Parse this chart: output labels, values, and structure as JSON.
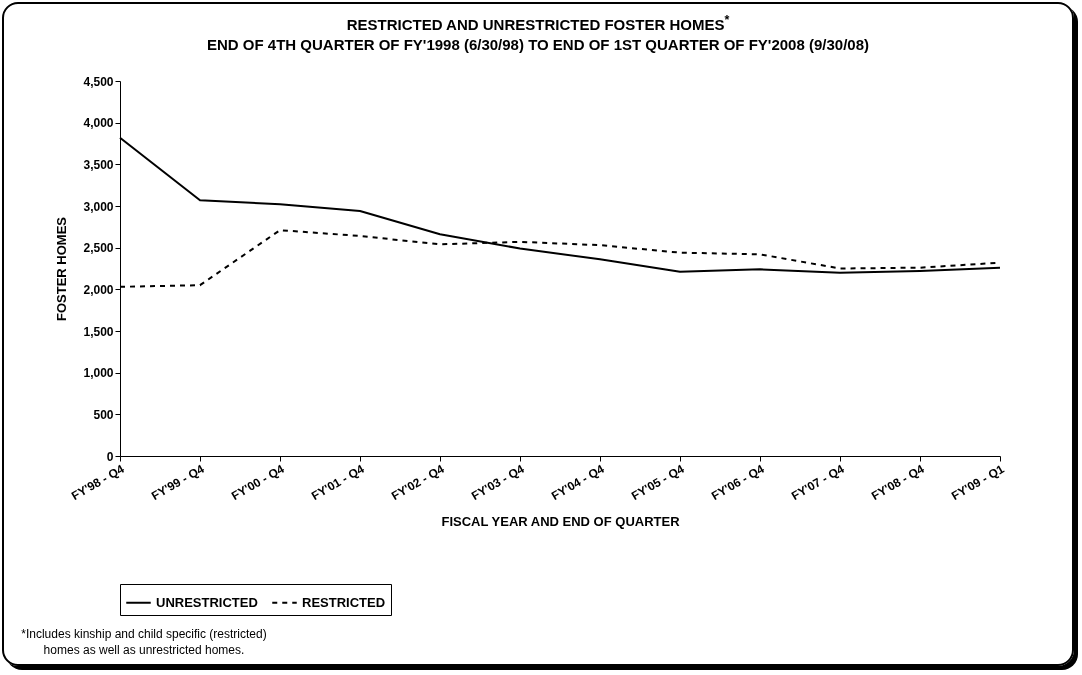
{
  "chart_data": {
    "type": "line",
    "title": "RESTRICTED AND UNRESTRICTED FOSTER HOMES$^{*}$",
    "subtitle": "END OF 4TH QUARTER OF FY'1998 (6/30/98) TO END OF 1ST QUARTER OF FY'2008 (9/30/08)",
    "xlabel": "FISCAL YEAR AND END OF QUARTER",
    "ylabel": "FOSTER HOMES",
    "categories": [
      "FY'98 - Q4",
      "FY'99 - Q4",
      "FY'00 - Q4",
      "FY'01 - Q4",
      "FY'02 - Q4",
      "FY'03 - Q4",
      "FY'04 - Q4",
      "FY'05 - Q4",
      "FY'06 - Q4",
      "FY'07 - Q4",
      "FY'08 - Q4",
      "FY'09 - Q1"
    ],
    "series": [
      {
        "name": "UNRESTRICTED",
        "color": "#000000",
        "line_style": "solid",
        "values": [
          3820,
          3070,
          3020,
          2940,
          2660,
          2490,
          2360,
          2210,
          2240,
          2200,
          2220,
          2260
        ]
      },
      {
        "name": "RESTRICTED",
        "color": "#000000",
        "line_style": "dashed",
        "values": [
          2030,
          2050,
          2710,
          2640,
          2540,
          2570,
          2530,
          2440,
          2420,
          2250,
          2260,
          2320
        ]
      }
    ],
    "ylim": [
      0,
      4500
    ],
    "yticks": [
      0,
      500,
      {
        "value": 1000,
        "label": "1,000"
      },
      {
        "value": 1500,
        "label": "1,500"
      },
      {
        "value": 2000,
        "label": "2,000"
      },
      {
        "value": 2500,
        "label": "2,500"
      },
      {
        "value": 3000,
        "label": "3,000"
      },
      {
        "value": 3500,
        "label": "3,500"
      },
      {
        "value": 4000,
        "label": "4,000"
      },
      {
        "value": 4500,
        "label": "4,500"
      }
    ],
    "grid": false,
    "legend": "bottom",
    "annotations": [
      "*Includes kinship and child specific (restricted) homes as well as unrestricted homes."
    ]
  }
}
